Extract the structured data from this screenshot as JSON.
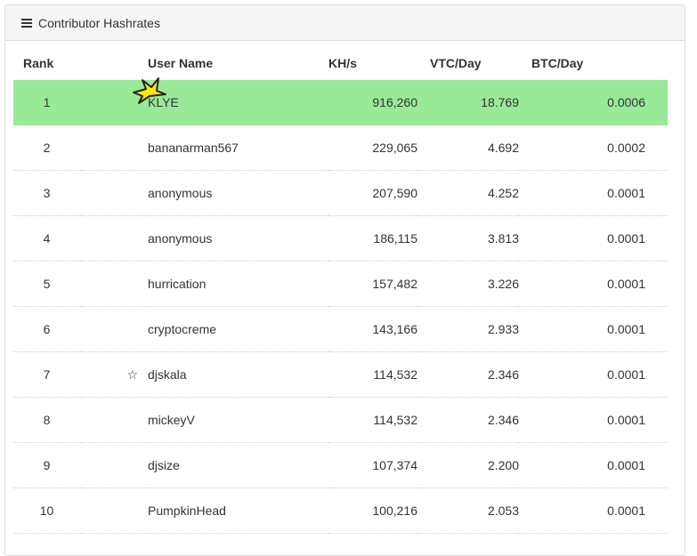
{
  "panel": {
    "title": "Contributor Hashrates"
  },
  "table": {
    "headers": {
      "rank": "Rank",
      "user": "User Name",
      "khs": "KH/s",
      "vtc": "VTC/Day",
      "btc": "BTC/Day"
    },
    "rows": [
      {
        "rank": "1",
        "star": "",
        "user": "KLYE",
        "khs": "916,260",
        "vtc": "18.769",
        "btc": "0.0006"
      },
      {
        "rank": "2",
        "star": "",
        "user": "bananarman567",
        "khs": "229,065",
        "vtc": "4.692",
        "btc": "0.0002"
      },
      {
        "rank": "3",
        "star": "",
        "user": "anonymous",
        "khs": "207,590",
        "vtc": "4.252",
        "btc": "0.0001"
      },
      {
        "rank": "4",
        "star": "",
        "user": "anonymous",
        "khs": "186,115",
        "vtc": "3.813",
        "btc": "0.0001"
      },
      {
        "rank": "5",
        "star": "",
        "user": "hurrication",
        "khs": "157,482",
        "vtc": "3.226",
        "btc": "0.0001"
      },
      {
        "rank": "6",
        "star": "",
        "user": "cryptocreme",
        "khs": "143,166",
        "vtc": "2.933",
        "btc": "0.0001"
      },
      {
        "rank": "7",
        "star": "☆",
        "user": "djskala",
        "khs": "114,532",
        "vtc": "2.346",
        "btc": "0.0001"
      },
      {
        "rank": "8",
        "star": "",
        "user": "mickeyV",
        "khs": "114,532",
        "vtc": "2.346",
        "btc": "0.0001"
      },
      {
        "rank": "9",
        "star": "",
        "user": "djsize",
        "khs": "107,374",
        "vtc": "2.200",
        "btc": "0.0001"
      },
      {
        "rank": "10",
        "star": "",
        "user": "PumpkinHead",
        "khs": "100,216",
        "vtc": "2.053",
        "btc": "0.0001"
      }
    ]
  },
  "colors": {
    "highlight": "#98ea98",
    "heading_bg": "#f5f5f5",
    "cursor": "#ffe600"
  },
  "icons": {
    "menu": "menu-icon",
    "favorite": "star-icon",
    "cursor": "cursor-icon"
  }
}
